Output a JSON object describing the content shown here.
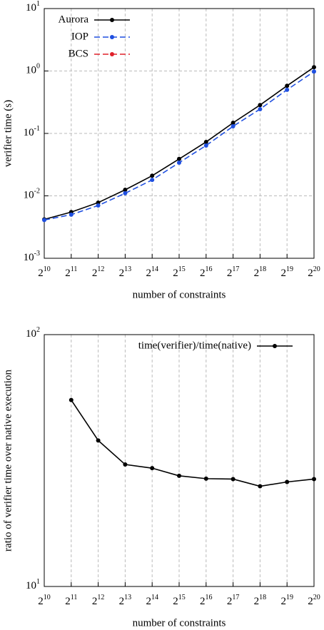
{
  "chart_data": [
    {
      "type": "line",
      "xlabel": "number of constraints",
      "ylabel": "verifier time (s)",
      "x": [
        1024,
        2048,
        4096,
        8192,
        16384,
        32768,
        65536,
        131072,
        262144,
        524288,
        1048576
      ],
      "series": [
        {
          "name": "Aurora",
          "color": "#000000",
          "dash": false,
          "values": [
            0.0042,
            0.0055,
            0.0078,
            0.0125,
            0.021,
            0.039,
            0.073,
            0.148,
            0.285,
            0.58,
            1.15
          ]
        },
        {
          "name": "IOP",
          "color": "#1f4fe0",
          "dash": true,
          "values": [
            0.0041,
            0.005,
            0.007,
            0.011,
            0.018,
            0.034,
            0.064,
            0.13,
            0.245,
            0.5,
            0.98
          ]
        },
        {
          "name": "BCS",
          "color": "#e0202a",
          "dash": true,
          "values": [
            null,
            null,
            null,
            null,
            null,
            null,
            null,
            null,
            null,
            null,
            null
          ]
        }
      ],
      "xscale": "log",
      "yscale": "log",
      "xlim": [
        1024,
        1048576
      ],
      "xticks": [
        {
          "value": 1024,
          "label": "2^10"
        },
        {
          "value": 2048,
          "label": "2^11"
        },
        {
          "value": 4096,
          "label": "2^12"
        },
        {
          "value": 8192,
          "label": "2^13"
        },
        {
          "value": 16384,
          "label": "2^14"
        },
        {
          "value": 32768,
          "label": "2^15"
        },
        {
          "value": 65536,
          "label": "2^16"
        },
        {
          "value": 131072,
          "label": "2^17"
        },
        {
          "value": 262144,
          "label": "2^18"
        },
        {
          "value": 524288,
          "label": "2^19"
        },
        {
          "value": 1048576,
          "label": "2^20"
        }
      ],
      "ylim": [
        0.001,
        10
      ],
      "yticks": [
        {
          "value": 0.001,
          "label": "10^-3"
        },
        {
          "value": 0.01,
          "label": "10^-2"
        },
        {
          "value": 0.1,
          "label": "10^-1"
        },
        {
          "value": 1,
          "label": "10^0"
        },
        {
          "value": 10,
          "label": "10^1"
        }
      ],
      "grid": true,
      "legend": "upper left"
    },
    {
      "type": "line",
      "xlabel": "number of constraints",
      "ylabel": "ratio of verifier time over native execution",
      "x": [
        1024,
        2048,
        4096,
        8192,
        16384,
        32768,
        65536,
        131072,
        262144,
        524288,
        1048576
      ],
      "series": [
        {
          "name": "time(verifier)/time(native)",
          "color": "#000000",
          "dash": false,
          "values": [
            null,
            55,
            38,
            30.5,
            29.5,
            27.5,
            26.8,
            26.7,
            25,
            26,
            26.7
          ]
        }
      ],
      "xscale": "log",
      "yscale": "log",
      "xlim": [
        1024,
        1048576
      ],
      "xticks": [
        {
          "value": 1024,
          "label": "2^10"
        },
        {
          "value": 2048,
          "label": "2^11"
        },
        {
          "value": 4096,
          "label": "2^12"
        },
        {
          "value": 8192,
          "label": "2^13"
        },
        {
          "value": 16384,
          "label": "2^14"
        },
        {
          "value": 32768,
          "label": "2^15"
        },
        {
          "value": 65536,
          "label": "2^16"
        },
        {
          "value": 131072,
          "label": "2^17"
        },
        {
          "value": 262144,
          "label": "2^18"
        },
        {
          "value": 524288,
          "label": "2^19"
        },
        {
          "value": 1048576,
          "label": "2^20"
        }
      ],
      "ylim": [
        10,
        100
      ],
      "yticks": [
        {
          "value": 10,
          "label": "10^1"
        },
        {
          "value": 100,
          "label": "10^2"
        }
      ],
      "grid": "x",
      "legend": "upper right"
    }
  ]
}
